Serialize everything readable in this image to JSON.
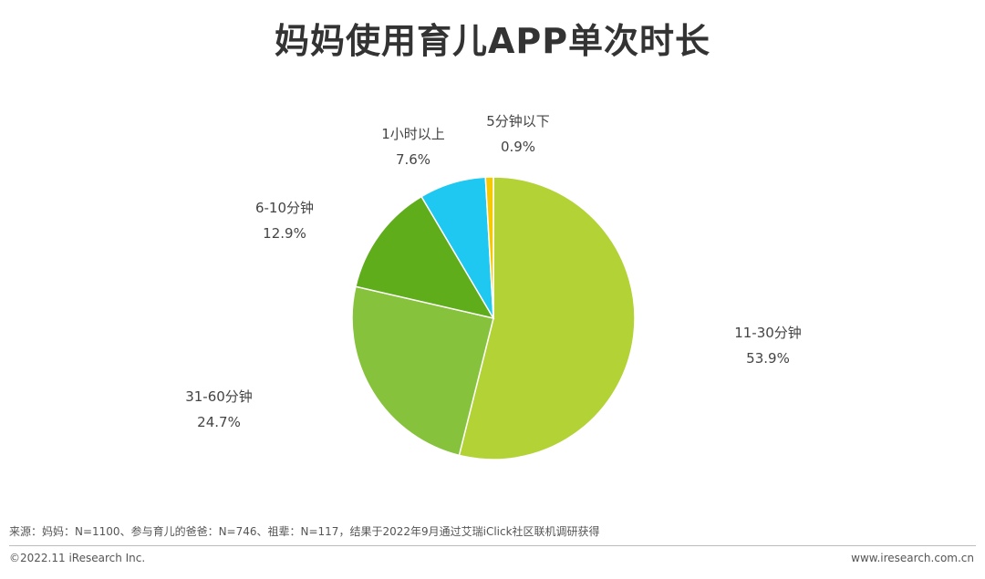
{
  "chart_data": {
    "type": "pie",
    "title": "妈妈使用育儿APP单次时长",
    "slices": [
      {
        "label": "11-30分钟",
        "value": 53.9,
        "value_text": "53.9%",
        "color": "#b2d235"
      },
      {
        "label": "31-60分钟",
        "value": 24.7,
        "value_text": "24.7%",
        "color": "#86c23b"
      },
      {
        "label": "6-10分钟",
        "value": 12.9,
        "value_text": "12.9%",
        "color": "#5fad1b"
      },
      {
        "label": "1小时以上",
        "value": 7.6,
        "value_text": "7.6%",
        "color": "#1ec8f0"
      },
      {
        "label": "5分钟以下",
        "value": 0.9,
        "value_text": "0.9%",
        "color": "#f5c800"
      }
    ],
    "legend": "none"
  },
  "footer": {
    "source": "来源：妈妈：N=1100、参与育儿的爸爸：N=746、祖辈：N=117，结果于2022年9月通过艾瑞iClick社区联机调研获得",
    "copyright": "©2022.11 iResearch Inc.",
    "website": "www.iresearch.com.cn"
  }
}
